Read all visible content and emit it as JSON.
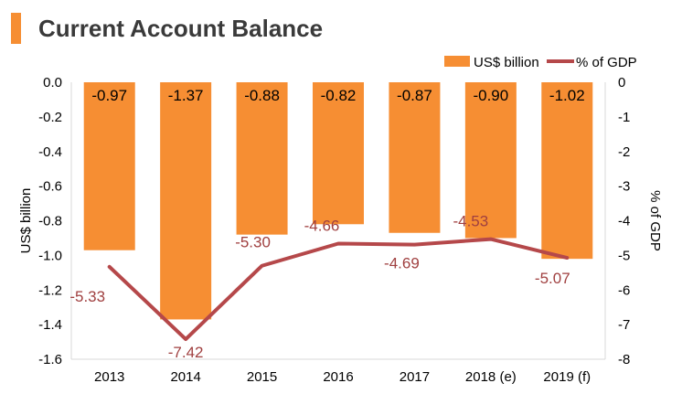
{
  "colors": {
    "bar": "#f68e33",
    "line": "#b5484a",
    "line_label": "#a04040",
    "title_bar": "#f68e33",
    "axis": "#d9d9d9"
  },
  "chart_data": {
    "type": "bar+line",
    "title": "Current Account Balance",
    "categories": [
      "2013",
      "2014",
      "2015",
      "2016",
      "2017",
      "2018 (e)",
      "2019 (f)"
    ],
    "series": [
      {
        "name": "US$ billion",
        "type": "bar",
        "axis": "left",
        "values": [
          -0.97,
          -1.37,
          -0.88,
          -0.82,
          -0.87,
          -0.9,
          -1.02
        ],
        "labels": [
          "-0.97",
          "-1.37",
          "-0.88",
          "-0.82",
          "-0.87",
          "-0.90",
          "-1.02"
        ]
      },
      {
        "name": "% of GDP",
        "type": "line",
        "axis": "right",
        "values": [
          -5.33,
          -7.42,
          -5.3,
          -4.66,
          -4.69,
          -4.53,
          -5.07
        ],
        "labels": [
          "-5.33",
          "-7.42",
          "-5.30",
          "-4.66",
          "-4.69",
          "-4.53",
          "-5.07"
        ]
      }
    ],
    "y_left": {
      "label": "US$ billion",
      "lim": [
        -1.6,
        0.0
      ],
      "ticks": [
        "0.0",
        "-0.2",
        "-0.4",
        "-0.6",
        "-0.8",
        "-1.0",
        "-1.2",
        "-1.4",
        "-1.6"
      ]
    },
    "y_right": {
      "label": "% of GDP",
      "lim": [
        -8,
        0
      ],
      "ticks": [
        "0",
        "-1",
        "-2",
        "-3",
        "-4",
        "-5",
        "-6",
        "-7",
        "-8"
      ]
    },
    "legend": "top-right",
    "grid": false
  }
}
